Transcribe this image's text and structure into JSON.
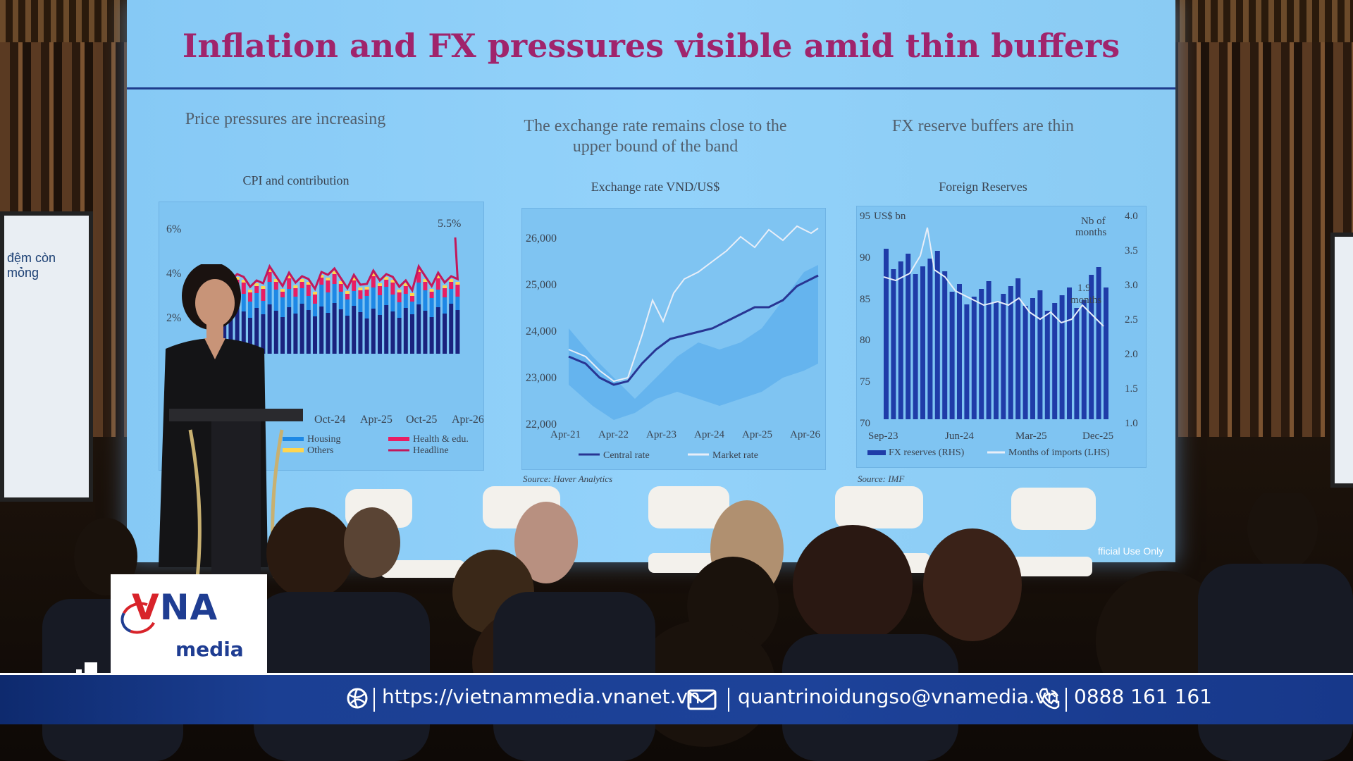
{
  "slide": {
    "title": "Inflation and FX pressures visible amid thin buffers",
    "panels": [
      {
        "heading": "Price pressures are increasing",
        "chart_title": "CPI and contribution",
        "y_labels": [
          "6%",
          "4%",
          "2%"
        ],
        "x_labels": [
          "Oct-24",
          "Apr-25",
          "Oct-25",
          "Apr-26"
        ],
        "annotation": "5.5%",
        "legend": [
          "Housing",
          "Others",
          "Health & edu.",
          "Headline"
        ],
        "source": "Source: Haver Analytics"
      },
      {
        "heading_line1": "The exchange rate remains close to the",
        "heading_line2": "upper bound of the band",
        "chart_title": "Exchange rate VND/US$",
        "y_labels": [
          "26,000",
          "25,000",
          "24,000",
          "23,000",
          "22,000"
        ],
        "x_labels": [
          "Apr-21",
          "Apr-22",
          "Apr-23",
          "Apr-24",
          "Apr-25",
          "Apr-26"
        ],
        "legend": [
          "Central rate",
          "Market rate"
        ]
      },
      {
        "heading": "FX reserve buffers are thin",
        "chart_title": "Foreign Reserves",
        "unit_left": "US$ bn",
        "unit_right_1": "Nb of",
        "unit_right_2": "months",
        "y_left": [
          "95",
          "90",
          "85",
          "80",
          "75",
          "70"
        ],
        "y_right": [
          "4.0",
          "3.5",
          "3.0",
          "2.5",
          "2.0",
          "1.5",
          "1.0"
        ],
        "x_labels": [
          "Sep-23",
          "Jun-24",
          "Mar-25",
          "Dec-25"
        ],
        "annotation_1": "1.9",
        "annotation_2": "months",
        "legend": [
          "FX reserves (RHS)",
          "Months of imports (LHS)"
        ],
        "source": "Source: IMF"
      }
    ],
    "footer": "fficial Use Only"
  },
  "side_screen_text": "đệm còn mỏng",
  "logo": {
    "v": "V",
    "na": "NA",
    "media": "media"
  },
  "contact_bar": {
    "website": "https://vietnammedia.vnanet.vn",
    "email": "quantrinoidungso@vnamedia.vn",
    "phone": "0888 161 161"
  },
  "colors": {
    "slide_bg": "#8ecdf7",
    "title": "#a0246c",
    "bar": "#1d4299",
    "reserves_bar": "#1f3ca8"
  }
}
